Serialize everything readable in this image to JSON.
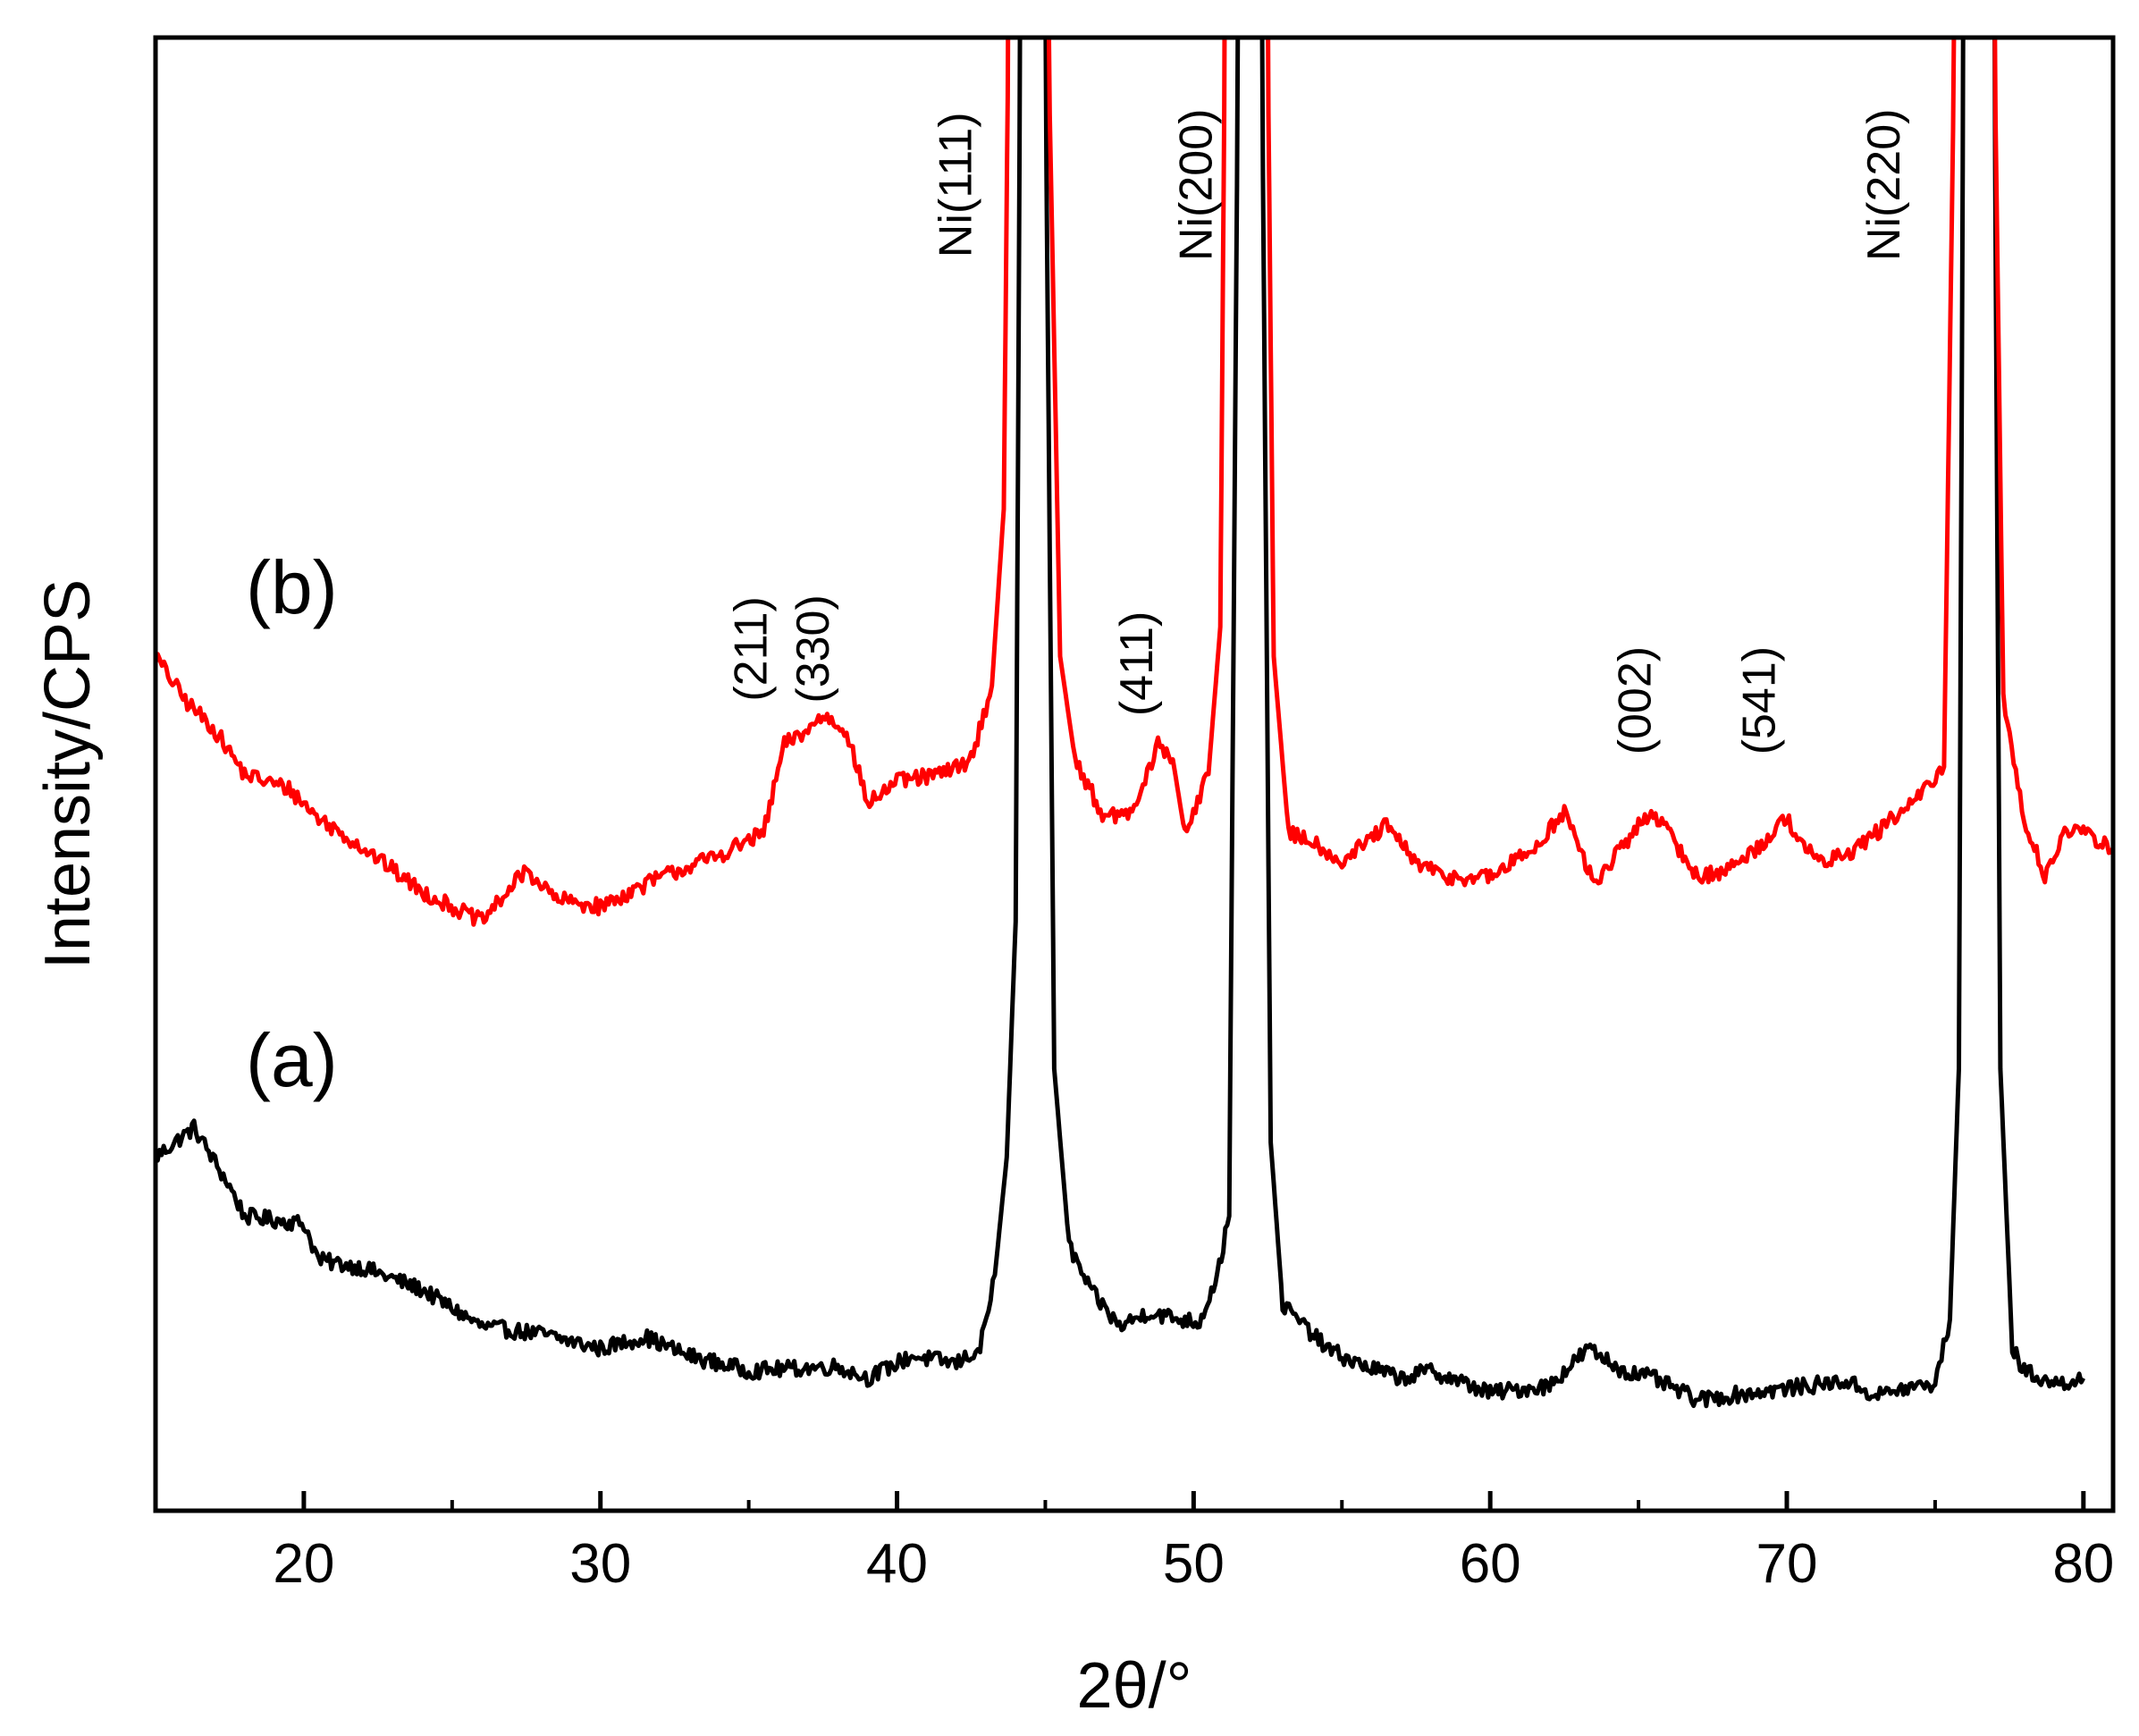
{
  "chart_data": {
    "type": "line",
    "title": "",
    "xlabel": "2θ/°",
    "ylabel": "Intensity/CPS",
    "xlim": [
      15,
      81
    ],
    "ylim": [
      0,
      100
    ],
    "xticks": [
      20,
      30,
      40,
      50,
      60,
      70,
      80
    ],
    "xtick_labels": [
      "20",
      "30",
      "40",
      "50",
      "60",
      "70",
      "80"
    ],
    "y_ticks_shown": false,
    "grid": false,
    "legend": "none",
    "series": [
      {
        "name": "(a)",
        "label": "(a)",
        "color": "#000000",
        "baseline": 8,
        "points": [
          [
            15,
            24
          ],
          [
            16.3,
            26
          ],
          [
            17.5,
            22
          ],
          [
            18,
            20
          ],
          [
            20,
            19.5
          ],
          [
            20.5,
            17
          ],
          [
            22,
            16.5
          ],
          [
            24,
            15
          ],
          [
            26,
            12.5
          ],
          [
            28,
            12
          ],
          [
            30,
            11
          ],
          [
            31.5,
            11.8
          ],
          [
            33,
            10.5
          ],
          [
            35,
            9.5
          ],
          [
            38,
            9.8
          ],
          [
            39,
            9
          ],
          [
            40.5,
            10.5
          ],
          [
            42,
            10
          ],
          [
            42.8,
            11
          ],
          [
            43.3,
            16
          ],
          [
            43.7,
            24
          ],
          [
            44,
            40
          ],
          [
            44.15,
            100
          ],
          [
            45.0,
            100
          ],
          [
            45.3,
            30
          ],
          [
            45.8,
            18
          ],
          [
            46.5,
            15
          ],
          [
            47.5,
            12.5
          ],
          [
            48.5,
            13.5
          ],
          [
            49.5,
            13
          ],
          [
            50.2,
            12.8
          ],
          [
            50.8,
            16
          ],
          [
            51.2,
            20
          ],
          [
            51.5,
            100
          ],
          [
            52.3,
            100
          ],
          [
            52.6,
            25
          ],
          [
            53,
            14
          ],
          [
            54.5,
            11
          ],
          [
            55.5,
            10
          ],
          [
            57,
            9
          ],
          [
            58,
            9.5
          ],
          [
            60,
            8
          ],
          [
            62,
            8.5
          ],
          [
            63.3,
            11
          ],
          [
            64.5,
            9.5
          ],
          [
            65.5,
            9
          ],
          [
            67,
            7.5
          ],
          [
            68,
            7.8
          ],
          [
            70,
            8.3
          ],
          [
            72,
            8.8
          ],
          [
            73,
            7.8
          ],
          [
            74,
            8.3
          ],
          [
            75,
            8.6
          ],
          [
            75.5,
            13
          ],
          [
            75.8,
            30
          ],
          [
            75.95,
            100
          ],
          [
            77.0,
            100
          ],
          [
            77.2,
            30
          ],
          [
            77.6,
            11
          ],
          [
            78,
            9.5
          ],
          [
            79,
            8.6
          ],
          [
            80,
            9
          ]
        ]
      },
      {
        "name": "(b)",
        "label": "(b)",
        "color": "#ff0000",
        "baseline": 42,
        "points": [
          [
            15,
            58
          ],
          [
            16,
            55
          ],
          [
            17,
            53
          ],
          [
            18,
            50
          ],
          [
            19.5,
            49
          ],
          [
            20.5,
            47
          ],
          [
            22,
            45
          ],
          [
            24,
            42
          ],
          [
            26,
            40
          ],
          [
            27.5,
            43.5
          ],
          [
            28.5,
            41.5
          ],
          [
            30,
            41
          ],
          [
            32,
            43
          ],
          [
            34,
            44.5
          ],
          [
            35.5,
            46
          ],
          [
            36.2,
            52
          ],
          [
            37,
            53
          ],
          [
            37.5,
            54
          ],
          [
            38.3,
            53
          ],
          [
            39,
            48
          ],
          [
            40,
            49.5
          ],
          [
            41.5,
            50
          ],
          [
            42.5,
            51
          ],
          [
            43.2,
            56
          ],
          [
            43.6,
            68
          ],
          [
            43.75,
            100
          ],
          [
            45.1,
            100
          ],
          [
            45.5,
            58
          ],
          [
            46,
            51
          ],
          [
            47,
            47
          ],
          [
            48,
            47.5
          ],
          [
            48.8,
            52
          ],
          [
            49.3,
            51
          ],
          [
            49.7,
            46
          ],
          [
            50.5,
            50
          ],
          [
            50.9,
            60
          ],
          [
            51.05,
            100
          ],
          [
            52.5,
            100
          ],
          [
            52.7,
            58
          ],
          [
            53.2,
            46
          ],
          [
            54,
            45.5
          ],
          [
            55,
            44
          ],
          [
            56.5,
            46.5
          ],
          [
            57.5,
            44
          ],
          [
            58.5,
            43
          ],
          [
            60,
            43
          ],
          [
            61.5,
            45
          ],
          [
            62.5,
            47.5
          ],
          [
            63.5,
            42.5
          ],
          [
            65,
            46.5
          ],
          [
            65.5,
            47.5
          ],
          [
            67,
            43
          ],
          [
            68,
            43.5
          ],
          [
            69,
            45
          ],
          [
            70,
            47
          ],
          [
            71,
            44
          ],
          [
            72,
            44.5
          ],
          [
            73,
            46
          ],
          [
            74.5,
            48.5
          ],
          [
            75.3,
            50.5
          ],
          [
            75.65,
            100
          ],
          [
            77.0,
            100
          ],
          [
            77.3,
            55
          ],
          [
            78,
            47
          ],
          [
            78.7,
            43
          ],
          [
            79.3,
            46
          ],
          [
            80,
            46
          ],
          [
            81,
            45
          ]
        ]
      }
    ],
    "annotations": [
      {
        "text": "Ni(111)",
        "x": 42.5,
        "y": 90
      },
      {
        "text": "Ni(200)",
        "x": 50.6,
        "y": 90
      },
      {
        "text": "Ni(220)",
        "x": 73.8,
        "y": 90
      },
      {
        "text": "(211)",
        "x": 35.6,
        "y": 58.5
      },
      {
        "text": "(330)",
        "x": 37.7,
        "y": 58.5
      },
      {
        "text": "(411)",
        "x": 48.6,
        "y": 57.5
      },
      {
        "text": "(002)",
        "x": 65.4,
        "y": 55
      },
      {
        "text": "(541)",
        "x": 69.6,
        "y": 55
      }
    ]
  }
}
